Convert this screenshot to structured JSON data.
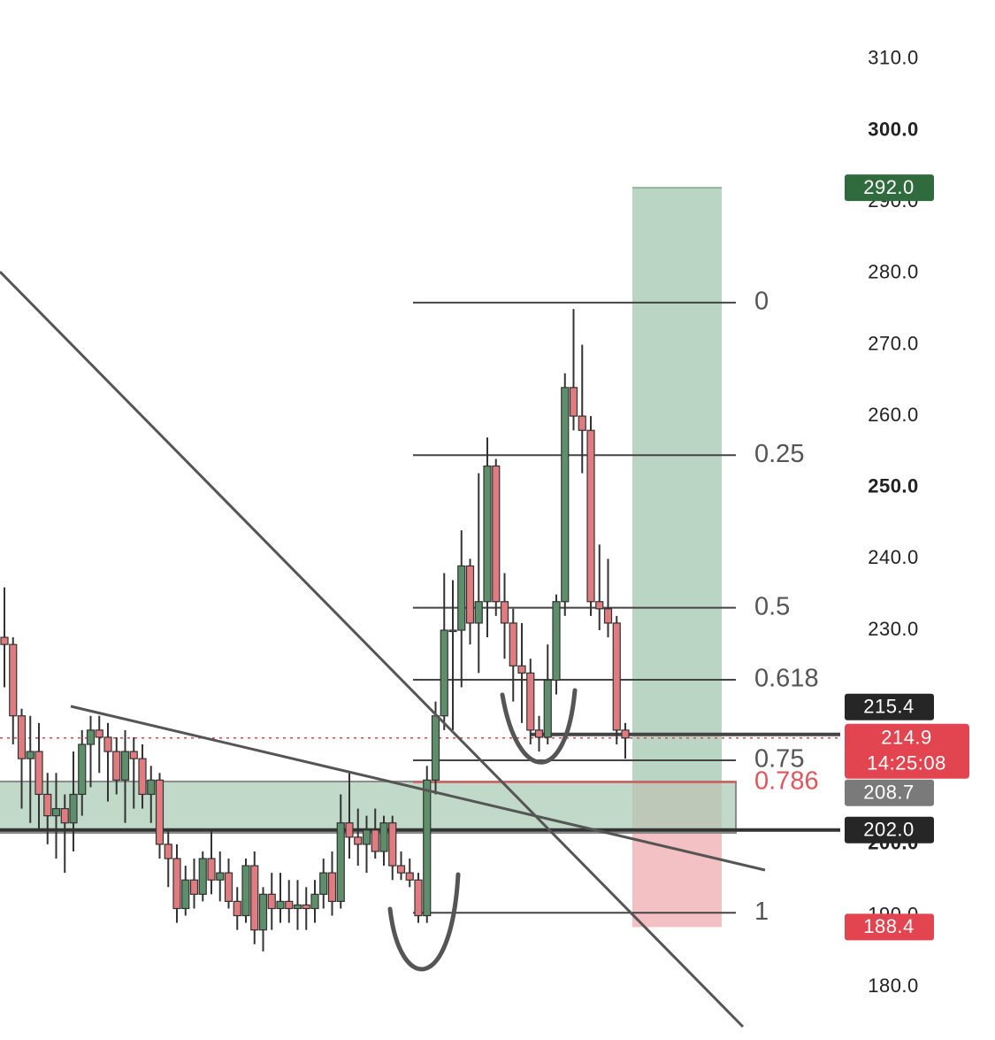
{
  "chart_data": {
    "type": "candlestick",
    "ylim": [
      173.2,
      318.3
    ],
    "yticks": [
      {
        "value": 180,
        "label": "180.0"
      },
      {
        "value": 190,
        "label": "190.0"
      },
      {
        "value": 200,
        "label": "200.0"
      },
      {
        "value": 230,
        "label": "230.0"
      },
      {
        "value": 240,
        "label": "240.0"
      },
      {
        "value": 250,
        "label": "250.0"
      },
      {
        "value": 260,
        "label": "260.0"
      },
      {
        "value": 270,
        "label": "270.0"
      },
      {
        "value": 280,
        "label": "280.0"
      },
      {
        "value": 290,
        "label": "290.0"
      },
      {
        "value": 300,
        "label": "300.0"
      },
      {
        "value": 310,
        "label": "310.0"
      }
    ],
    "up_color": "#5e8f6b",
    "down_color": "#e07c7f",
    "open": [
      229,
      228,
      218,
      212,
      213,
      207,
      204,
      205,
      203,
      207,
      214,
      216,
      215,
      213,
      209,
      213,
      212,
      207,
      209,
      200,
      198,
      191,
      195,
      193,
      198,
      195,
      196,
      192,
      190,
      197,
      188,
      193,
      191,
      192,
      191,
      191.5,
      191,
      193,
      196,
      192,
      203,
      201,
      200,
      202,
      199,
      203,
      197,
      196,
      195,
      190,
      209,
      218,
      230,
      230,
      239,
      231,
      234,
      253,
      234,
      231,
      225,
      224,
      216,
      215,
      223,
      234,
      264,
      260,
      258,
      234,
      233,
      231,
      216
    ],
    "high": [
      236,
      229,
      219,
      218,
      217,
      210,
      210,
      207,
      213,
      216,
      218,
      218,
      217,
      215,
      216,
      215,
      214,
      211,
      210,
      202,
      200,
      197,
      198,
      199,
      202,
      199,
      198,
      194,
      198,
      199,
      194,
      196,
      196,
      195,
      195,
      194,
      195,
      198,
      199,
      207,
      210,
      205,
      204,
      205,
      204,
      204,
      199,
      198,
      196,
      211,
      220,
      238,
      237,
      244,
      240,
      252,
      257,
      254,
      238,
      233,
      231,
      226,
      218,
      228,
      235,
      266,
      275,
      270,
      260,
      242,
      240,
      232,
      217
    ],
    "low": [
      222,
      214,
      205,
      203,
      202,
      200,
      198,
      196,
      199,
      204,
      208,
      210,
      206,
      207,
      203,
      205,
      205,
      203,
      198,
      194,
      189,
      190,
      191,
      192,
      193,
      192,
      191,
      188,
      189,
      186,
      185,
      188,
      189,
      189,
      188,
      188,
      189,
      191,
      190,
      191,
      198,
      197,
      196,
      198,
      197,
      195,
      195,
      194,
      189,
      189,
      207,
      216,
      216,
      222,
      228,
      224,
      229,
      232,
      226,
      220,
      217,
      214,
      213,
      214,
      221,
      232,
      258,
      252,
      232,
      230,
      229,
      214,
      212
    ],
    "close": [
      228,
      218,
      212,
      213,
      207,
      204,
      205,
      203,
      207,
      214,
      216,
      215,
      213,
      209,
      213,
      212,
      207,
      209,
      200,
      198,
      191,
      195,
      193,
      198,
      195,
      196,
      192,
      190,
      197,
      188,
      193,
      191,
      192,
      191,
      191.5,
      191,
      193,
      196,
      192,
      203,
      201,
      200,
      202,
      199,
      203,
      197,
      196,
      195,
      190,
      209,
      218,
      230,
      230,
      239,
      231,
      234,
      253,
      234,
      231,
      225,
      224,
      216,
      215,
      223,
      234,
      264,
      260,
      258,
      234,
      233,
      231,
      216,
      214.9
    ],
    "fib": {
      "start": 275.9,
      "end": 190.4,
      "levels": [
        0,
        0.25,
        0.5,
        0.618,
        0.75,
        0.786,
        1
      ],
      "highlight_color": "#e0565b"
    },
    "position": {
      "entry": 208.7,
      "target": 292.0,
      "stop": 188.4,
      "profit_color": "#bad5c3",
      "loss_color": "#f3c0c4"
    },
    "zone": {
      "top": 208.8,
      "bottom": 201.6,
      "color": "#a9cbb3"
    },
    "price_labels": [
      {
        "value": 292.0,
        "label": "292.0",
        "color": "#2f6b3c"
      },
      {
        "value": 215.4,
        "label": "215.4",
        "color": "#262626"
      },
      {
        "value": 214.9,
        "label": "214.9",
        "color": "#e2454f",
        "countdown": "14:25:08"
      },
      {
        "value": 208.7,
        "label": "208.7",
        "color": "#7a7a7a"
      },
      {
        "value": 202.0,
        "label": "202.0",
        "color": "#262626"
      },
      {
        "value": 188.4,
        "label": "188.4",
        "color": "#e2454f"
      }
    ]
  }
}
